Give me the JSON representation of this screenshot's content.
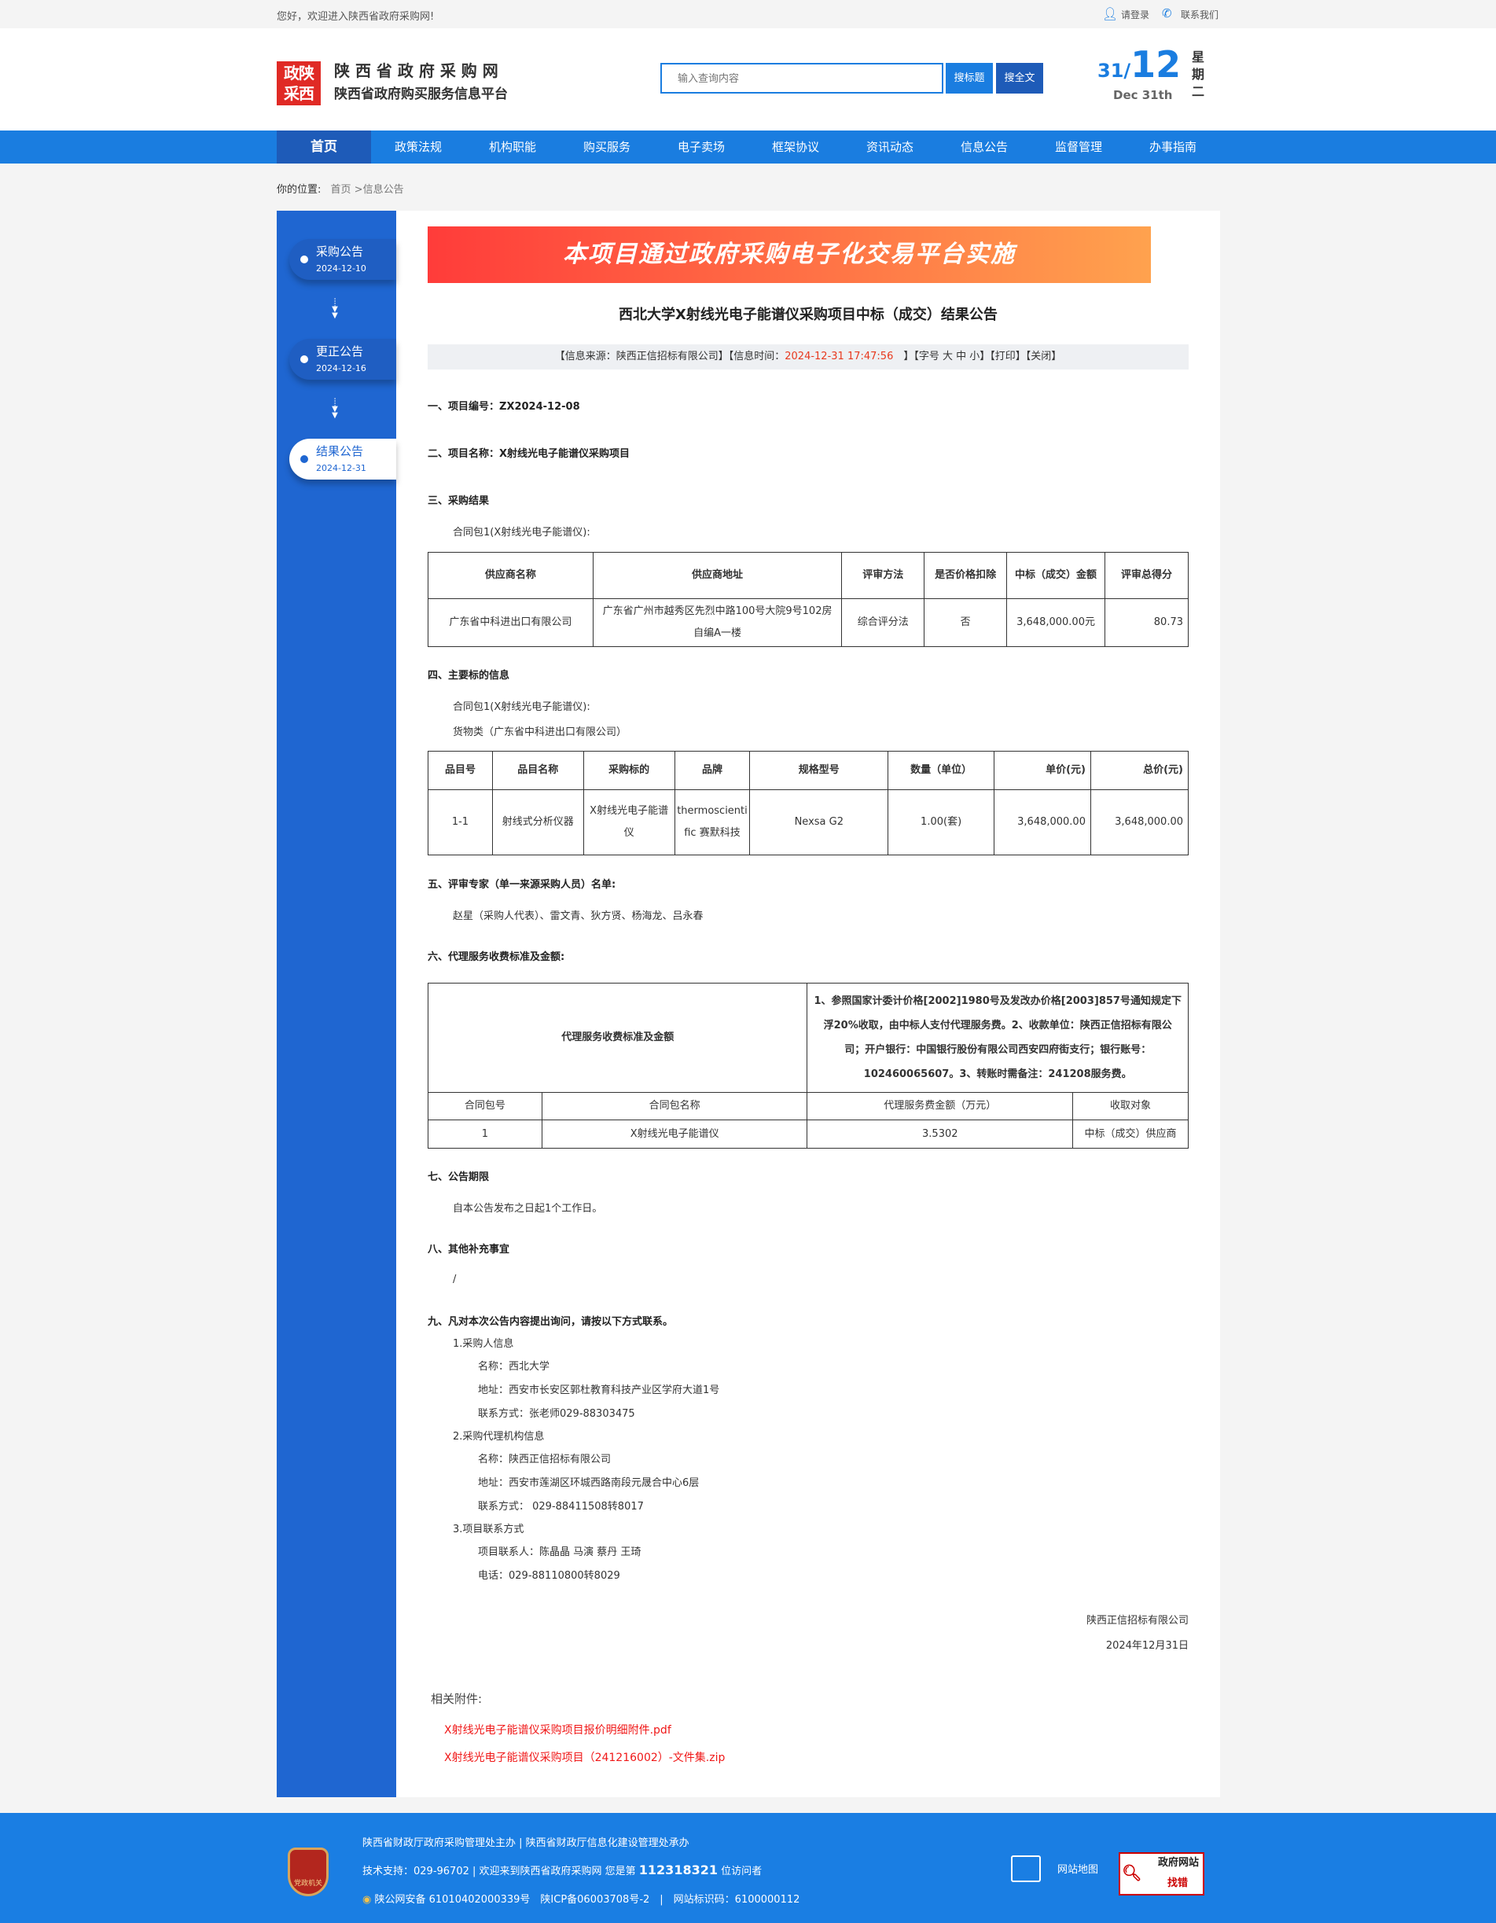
{
  "topbar": {
    "welcome": "您好，欢迎进入陕西省政府采购网!",
    "login": "请登录",
    "contact": "联系我们"
  },
  "header": {
    "logo_text": "政陕采西",
    "title": "陕 西 省 政 府 采 购 网",
    "subtitle": "陕西省政府购买服务信息平台",
    "search_placeholder": "输入查询内容",
    "search_title_btn": "搜标题",
    "search_full_btn": "搜全文",
    "day": "31",
    "slash": "/",
    "month": "12",
    "date_en": "Dec 31th",
    "weekday": "星期二"
  },
  "nav": [
    "首页",
    "政策法规",
    "机构职能",
    "购买服务",
    "电子卖场",
    "框架协议",
    "资讯动态",
    "信息公告",
    "监督管理",
    "办事指南"
  ],
  "breadcrumb": {
    "label": "你的位置:",
    "home": "首页",
    "sep": " >",
    "current": "信息公告"
  },
  "timeline": [
    {
      "label": "采购公告",
      "date": "2024-12-10"
    },
    {
      "label": "更正公告",
      "date": "2024-12-16"
    },
    {
      "label": "结果公告",
      "date": "2024-12-31",
      "active": true
    }
  ],
  "banner": "本项目通过政府采购电子化交易平台实施",
  "article": {
    "title": "西北大学X射线光电子能谱仪采购项目中标（成交）结果公告",
    "info": {
      "source": "【信息来源：陕西正信招标有限公司】【信息时间：",
      "time": "2024-12-31 17:47:56",
      "rest": "　】【字号 大 中 小】【打印】【关闭】"
    },
    "s1_label": "一、项目编号：",
    "s1_value": "ZX2024-12-08",
    "s2_label": "二、项目名称：",
    "s2_value": "X射线光电子能谱仪采购项目",
    "s3": "三、采购结果",
    "s3_pkg": "合同包1(X射线光电子能谱仪):",
    "t1_head": [
      "供应商名称",
      "供应商地址",
      "评审方法",
      "是否价格扣除",
      "中标（成交）金额",
      "评审总得分"
    ],
    "t1_row": [
      "广东省中科进出口有限公司",
      "广东省广州市越秀区先烈中路100号大院9号102房自编A一楼",
      "综合评分法",
      "否",
      "3,648,000.00元",
      "80.73"
    ],
    "s4": "四、主要标的信息",
    "s4_pkg": "合同包1(X射线光电子能谱仪):",
    "s4_cat": "货物类（广东省中科进出口有限公司）",
    "t2_head": [
      "品目号",
      "品目名称",
      "采购标的",
      "品牌",
      "规格型号",
      "数量（单位）",
      "单价(元)",
      "总价(元)"
    ],
    "t2_row": [
      "1-1",
      "射线式分析仪器",
      "X射线光电子能谱仪",
      "thermoscientific 赛默科技",
      "Nexsa G2",
      "1.00(套)",
      "3,648,000.00",
      "3,648,000.00"
    ],
    "s5": "五、评审专家（单一来源采购人员）名单:",
    "s5_names": "赵星（采购人代表）、雷文青、狄方贤、杨海龙、吕永春",
    "s6": "六、代理服务收费标准及金额:",
    "t3_label": "代理服务收费标准及金额",
    "t3_desc": "1、参照国家计委计价格[2002]1980号及发改办价格[2003]857号通知规定下浮20%收取，由中标人支付代理服务费。2、收款单位：陕西正信招标有限公司；开户银行：中国银行股份有限公司西安四府街支行；银行账号：102460065607。3、转账时需备注：241208服务费。",
    "t3_head": [
      "合同包号",
      "合同包名称",
      "代理服务费金额（万元）",
      "收取对象"
    ],
    "t3_row": [
      "1",
      "X射线光电子能谱仪",
      "3.5302",
      "中标（成交）供应商"
    ],
    "s7": "七、公告期限",
    "s7_text": "自本公告发布之日起1个工作日。",
    "s8": "八、其他补充事宜",
    "s8_text": "/",
    "s9": "九、凡对本次公告内容提出询问，请按以下方式联系。",
    "contacts": [
      {
        "title": "1.采购人信息",
        "lines": [
          "名称：西北大学",
          "地址：西安市长安区郭杜教育科技产业区学府大道1号",
          "联系方式：张老师029-88303475"
        ]
      },
      {
        "title": "2.采购代理机构信息",
        "lines": [
          "名称：陕西正信招标有限公司",
          "地址：西安市莲湖区环城西路南段元晟合中心6层",
          "联系方式： 029-88411508转8017"
        ]
      },
      {
        "title": "3.项目联系方式",
        "lines": [
          "项目联系人：陈晶晶 马演 蔡丹 王琦",
          "电话：029-88110800转8029"
        ]
      }
    ],
    "signer": "陕西正信招标有限公司",
    "sign_date": "2024年12月31日",
    "attach_label": "相关附件:",
    "attachments": [
      "X射线光电子能谱仪采购项目报价明细附件.pdf",
      "X射线光电子能谱仪采购项目（241216002）-文件集.zip"
    ]
  },
  "footer": {
    "line1": "陕西省财政厅政府采购管理处主办 | 陕西省财政厅信息化建设管理处承办",
    "line2_pre": "技术支持：029-96702 | 欢迎来到陕西省政府采购网 您是第 ",
    "visitors": "112318321",
    "line2_post": " 位访问者",
    "line3": "陕公网安备 61010402000339号　陕ICP备06003708号-2　|　网站标识码：6100000112",
    "emblem_text": "党政机关",
    "sitemap": "网站地图",
    "badge_top": "政府网站",
    "badge_bottom": "找错"
  },
  "colors": {
    "nav": "#1a7de0",
    "nav_active": "#1e5bb8",
    "sidebar": "#1f66d1",
    "footer": "#1a7ee3",
    "highlight": "#e8391e"
  }
}
